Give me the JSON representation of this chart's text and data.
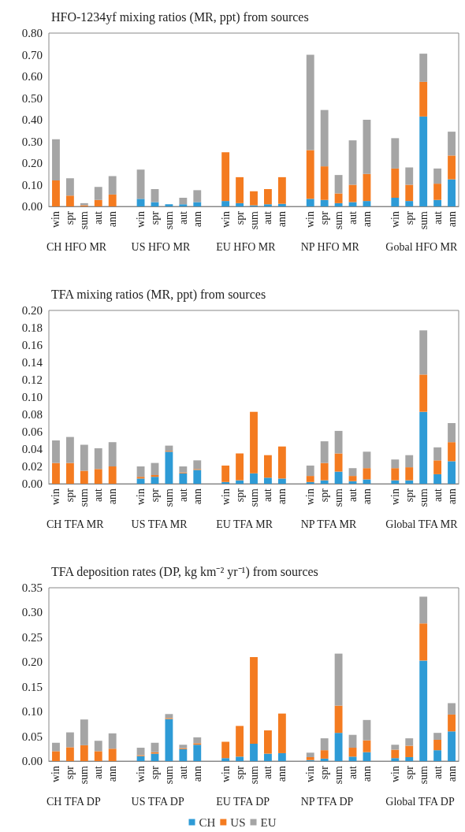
{
  "chart_data": [
    {
      "type": "bar",
      "title": "HFO-1234yf mixing ratios (MR, ppt) from sources",
      "stacked": true,
      "legend": false,
      "grid": false,
      "categories": [
        "win",
        "spr",
        "sum",
        "aut",
        "ann",
        null,
        "win",
        "spr",
        "sum",
        "aut",
        "ann",
        null,
        "win",
        "spr",
        "sum",
        "aut",
        "ann",
        null,
        "win",
        "spr",
        "sum",
        "aut",
        "ann",
        null,
        "win",
        "spr",
        "sum",
        "aut",
        "ann"
      ],
      "annotations": [
        "CH HFO MR",
        "US HFO MR",
        "EU HFO MR",
        "NP HFO MR",
        "Gobal HFO MR"
      ],
      "ylim": [
        0,
        0.8
      ],
      "yticks": [
        {
          "value": 0,
          "label": "0.00"
        },
        {
          "value": 0.1,
          "label": "0.10"
        },
        {
          "value": 0.2,
          "label": "0.20"
        },
        {
          "value": 0.3,
          "label": "0.30"
        },
        {
          "value": 0.4,
          "label": "0.40"
        },
        {
          "value": 0.5,
          "label": "0.50"
        },
        {
          "value": 0.6,
          "label": "0.60"
        },
        {
          "value": 0.7,
          "label": "0.70"
        },
        {
          "value": 0.8,
          "label": "0.80"
        }
      ],
      "series": [
        {
          "color": "#2e9bd6",
          "values": [
            0,
            0,
            0,
            0,
            0,
            null,
            0.035,
            0.02,
            0.01,
            0.01,
            0.02,
            null,
            0.025,
            0.015,
            0.005,
            0.01,
            0.012,
            null,
            0.035,
            0.03,
            0.015,
            0.02,
            0.025,
            null,
            0.04,
            0.025,
            0.415,
            0.03,
            0.125
          ]
        },
        {
          "color": "#f47b20",
          "values": [
            0.12,
            0.05,
            0.005,
            0.03,
            0.055,
            null,
            0,
            0,
            0,
            0,
            0,
            null,
            0.225,
            0.12,
            0.065,
            0.07,
            0.123,
            null,
            0.225,
            0.155,
            0.045,
            0.08,
            0.125,
            null,
            0.135,
            0.075,
            0.16,
            0.075,
            0.11
          ]
        },
        {
          "color": "#a5a5a5",
          "values": [
            0.19,
            0.08,
            0.01,
            0.06,
            0.085,
            null,
            0.135,
            0.06,
            null,
            0.03,
            0.055,
            null,
            0,
            0,
            0,
            0,
            0,
            null,
            0.44,
            0.26,
            0.085,
            0.205,
            0.25,
            null,
            0.14,
            0.08,
            0.13,
            0.07,
            0.11
          ]
        }
      ]
    },
    {
      "type": "bar",
      "title": "TFA mixing ratios (MR, ppt) from sources",
      "stacked": true,
      "legend": false,
      "grid": false,
      "categories": [
        "win",
        "spr",
        "sum",
        "aut",
        "ann",
        null,
        "win",
        "spr",
        "sum",
        "aut",
        "ann",
        null,
        "win",
        "spr",
        "sum",
        "aut",
        "ann",
        null,
        "win",
        "spr",
        "sum",
        "aut",
        "ann",
        null,
        "win",
        "spr",
        "sum",
        "aut",
        "ann"
      ],
      "annotations": [
        "CH TFA MR",
        "US TFA MR",
        "EU TFA MR",
        "NP TFA MR",
        "Global TFA MR"
      ],
      "ylim": [
        0,
        0.2
      ],
      "yticks": [
        {
          "value": 0,
          "label": "0.00"
        },
        {
          "value": 0.02,
          "label": "0.02"
        },
        {
          "value": 0.04,
          "label": "0.04"
        },
        {
          "value": 0.06,
          "label": "0.06"
        },
        {
          "value": 0.08,
          "label": "0.08"
        },
        {
          "value": 0.1,
          "label": "0.10"
        },
        {
          "value": 0.12,
          "label": "0.12"
        },
        {
          "value": 0.14,
          "label": "0.14"
        },
        {
          "value": 0.16,
          "label": "0.16"
        },
        {
          "value": 0.18,
          "label": "0.18"
        },
        {
          "value": 0.2,
          "label": "0.20"
        }
      ],
      "series": [
        {
          "color": "#2e9bd6",
          "values": [
            0,
            0,
            0,
            0,
            0,
            null,
            0.006,
            0.008,
            0.037,
            0.012,
            0.016,
            null,
            0.002,
            0.004,
            0.012,
            0.007,
            0.006,
            null,
            0.002,
            0.004,
            0.014,
            0.003,
            0.005,
            null,
            0.004,
            0.004,
            0.083,
            0.011,
            0.026
          ]
        },
        {
          "color": "#f47b20",
          "values": [
            0.024,
            0.024,
            0.015,
            0.017,
            0.02,
            null,
            0.002,
            0.002,
            0.001,
            0.001,
            0.001,
            null,
            0.019,
            0.031,
            0.071,
            0.026,
            0.037,
            null,
            0.007,
            0.02,
            0.021,
            0.006,
            0.013,
            null,
            0.014,
            0.015,
            0.043,
            0.016,
            0.022
          ]
        },
        {
          "color": "#a5a5a5",
          "values": [
            0.026,
            0.03,
            0.03,
            0.024,
            0.028,
            null,
            0.012,
            0.014,
            0.006,
            0.007,
            0.01,
            null,
            0,
            0,
            0,
            0,
            0,
            null,
            0.012,
            0.025,
            0.026,
            0.009,
            0.019,
            null,
            0.01,
            0.014,
            0.051,
            0.015,
            0.022
          ]
        }
      ]
    },
    {
      "type": "bar",
      "title": "TFA deposition rates (DP, kg km⁻² yr⁻¹) from sources",
      "stacked": true,
      "legend": "bottom",
      "grid": false,
      "categories": [
        "win",
        "spr",
        "sum",
        "aut",
        "ann",
        null,
        "win",
        "spr",
        "sum",
        "aut",
        "ann",
        null,
        "win",
        "spr",
        "sum",
        "aut",
        "ann",
        null,
        "win",
        "spr",
        "sum",
        "aut",
        "ann",
        null,
        "win",
        "spr",
        "sum",
        "aut",
        "ann"
      ],
      "annotations": [
        "CH TFA DP",
        "US TFA DP",
        "EU TFA DP",
        "NP TFA DP",
        "Global TFA DP"
      ],
      "ylim": [
        0,
        0.35
      ],
      "yticks": [
        {
          "value": 0,
          "label": "0.00"
        },
        {
          "value": 0.05,
          "label": "0.05"
        },
        {
          "value": 0.1,
          "label": "0.10"
        },
        {
          "value": 0.15,
          "label": "0.15"
        },
        {
          "value": 0.2,
          "label": "0.20"
        },
        {
          "value": 0.25,
          "label": "0.25"
        },
        {
          "value": 0.3,
          "label": "0.30"
        },
        {
          "value": 0.35,
          "label": "0.35"
        }
      ],
      "series": [
        {
          "name": "CH",
          "color": "#2e9bd6",
          "values": [
            0,
            0,
            0,
            0,
            0,
            null,
            0.01,
            0.015,
            0.085,
            0.024,
            0.033,
            null,
            0.006,
            0.009,
            0.035,
            0.015,
            0.016,
            null,
            0.002,
            0.005,
            0.057,
            0.009,
            0.018,
            null,
            0.006,
            0.008,
            0.203,
            0.022,
            0.06
          ]
        },
        {
          "name": "US",
          "color": "#f47b20",
          "values": [
            0.02,
            0.028,
            0.032,
            0.02,
            0.025,
            null,
            0.002,
            0.003,
            0.002,
            0.002,
            0.003,
            null,
            0.033,
            0.062,
            0.175,
            0.047,
            0.08,
            null,
            0.006,
            0.017,
            0.055,
            0.018,
            0.024,
            null,
            0.017,
            0.023,
            0.075,
            0.021,
            0.034
          ]
        },
        {
          "name": "EU",
          "color": "#a5a5a5",
          "values": [
            0.017,
            0.03,
            0.052,
            0.021,
            0.031,
            null,
            0.015,
            0.019,
            0.008,
            0.007,
            0.012,
            null,
            0,
            0,
            null,
            0,
            0,
            null,
            0.009,
            0.024,
            0.105,
            0.026,
            0.041,
            null,
            0.01,
            0.015,
            0.054,
            0.014,
            0.023
          ]
        }
      ]
    }
  ]
}
